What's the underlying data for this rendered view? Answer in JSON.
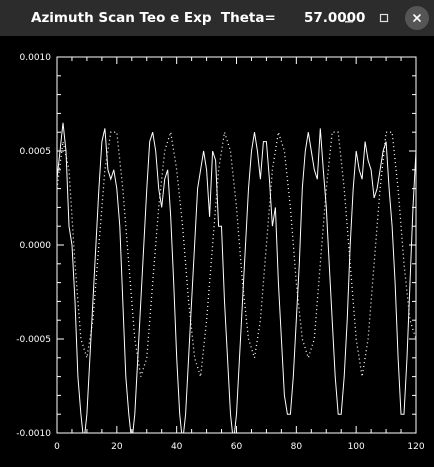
{
  "window": {
    "title": "Azimuth Scan Teo e Exp  Theta=      57.0000",
    "icons": [
      "minimize-icon",
      "maximize-icon",
      "close-icon"
    ]
  },
  "colors": {
    "titlebar": "#2c2c2c",
    "background": "#000000",
    "foreground": "#ffffff"
  },
  "chart_data": {
    "type": "line",
    "xlim": [
      0,
      120
    ],
    "ylim": [
      -0.001,
      0.001
    ],
    "xticks": [
      0,
      20,
      40,
      60,
      80,
      100,
      120
    ],
    "xtick_labels": [
      "0",
      "20",
      "40",
      "60",
      "80",
      "100",
      "120"
    ],
    "yticks": [
      -0.001,
      -0.0005,
      0.0,
      0.0005,
      0.001
    ],
    "ytick_labels": [
      "-0.0010",
      "-0.0005",
      "0.0000",
      "0.0005",
      "0.0010"
    ],
    "grid": false,
    "series": [
      {
        "style": "solid",
        "x": [
          0,
          1,
          2,
          3,
          4,
          5,
          6,
          7,
          8,
          9,
          10,
          11,
          12,
          13,
          14,
          15,
          16,
          17,
          18,
          19,
          20,
          21,
          22,
          23,
          24,
          25,
          26,
          27,
          28,
          29,
          30,
          31,
          32,
          33,
          34,
          35,
          36,
          37,
          38,
          39,
          40,
          41,
          42,
          43,
          44,
          45,
          46,
          47,
          48,
          49,
          50,
          51,
          52,
          53,
          54,
          55,
          56,
          57,
          58,
          59,
          60,
          61,
          62,
          63,
          64,
          65,
          66,
          67,
          68,
          69,
          70,
          71,
          72,
          73,
          74,
          75,
          76,
          77,
          78,
          79,
          80,
          81,
          82,
          83,
          84,
          85,
          86,
          87,
          88,
          89,
          90,
          91,
          92,
          93,
          94,
          95,
          96,
          97,
          98,
          99,
          100,
          101,
          102,
          103,
          104,
          105,
          106,
          107,
          108,
          109,
          110,
          111,
          112,
          113,
          114,
          115,
          116,
          117,
          118,
          119,
          120
        ],
        "y": [
          0.00035,
          0.0005,
          0.00065,
          0.0005,
          0.0001,
          0.0,
          -0.0003,
          -0.0007,
          -0.0009,
          -0.00105,
          -0.0009,
          -0.0006,
          -0.0003,
          0.0,
          0.0003,
          0.00055,
          0.00062,
          0.0004,
          0.00035,
          0.0004,
          0.0003,
          0.0001,
          -0.0003,
          -0.0007,
          -0.0009,
          -0.00105,
          -0.0009,
          -0.0006,
          -0.0003,
          0.0,
          0.0003,
          0.00055,
          0.0006,
          0.0005,
          0.0003,
          0.0002,
          0.00035,
          0.0004,
          0.00015,
          -0.0002,
          -0.0006,
          -0.0009,
          -0.00105,
          -0.0009,
          -0.0006,
          -0.0003,
          0.0,
          0.0003,
          0.0004,
          0.0005,
          0.0004,
          0.00015,
          0.0005,
          0.00045,
          0.0001,
          0.0001,
          -0.0003,
          -0.0006,
          -0.0009,
          -0.00105,
          -0.0009,
          -0.0006,
          -0.0003,
          0.0,
          0.0003,
          0.0005,
          0.0006,
          0.0005,
          0.00035,
          0.00055,
          0.00055,
          0.00035,
          0.0001,
          0.0002,
          -0.0002,
          -0.0005,
          -0.0008,
          -0.0009,
          -0.0009,
          -0.0007,
          -0.0004,
          -0.0001,
          0.0003,
          0.0005,
          0.0006,
          0.0005,
          0.0004,
          0.00035,
          0.00062,
          0.0004,
          0.0002,
          -0.0001,
          -0.0004,
          -0.0007,
          -0.0009,
          -0.0009,
          -0.0007,
          -0.0004,
          0.0,
          0.0003,
          0.0005,
          0.0004,
          0.00035,
          0.00055,
          0.00045,
          0.0004,
          0.00025,
          0.0003,
          0.0004,
          0.0005,
          0.00055,
          0.0003,
          0.0001,
          -0.0002,
          -0.0006,
          -0.0009,
          -0.0009,
          -0.0006,
          -0.0002,
          0.0002,
          0.0005
        ],
        "_note": ""
      },
      {
        "style": "dotted",
        "x": [
          0,
          2,
          4,
          6,
          8,
          10,
          12,
          14,
          16,
          18,
          20,
          22,
          24,
          26,
          28,
          30,
          32,
          34,
          36,
          38,
          40,
          42,
          44,
          46,
          48,
          50,
          52,
          54,
          56,
          58,
          60,
          62,
          64,
          66,
          68,
          70,
          72,
          74,
          76,
          78,
          80,
          82,
          84,
          86,
          88,
          90,
          92,
          94,
          96,
          98,
          100,
          102,
          104,
          106,
          108,
          110,
          112,
          114,
          116,
          118,
          120
        ],
        "y": [
          0.0003,
          0.00055,
          0.0004,
          -0.0001,
          -0.0005,
          -0.0006,
          -0.0004,
          0.0,
          0.0004,
          0.0006,
          0.0006,
          0.0003,
          -0.0001,
          -0.0005,
          -0.0007,
          -0.0006,
          -0.0002,
          0.0002,
          0.0005,
          0.0006,
          0.0004,
          0.0001,
          -0.0003,
          -0.0006,
          -0.0007,
          -0.0004,
          0.0,
          0.0004,
          0.0006,
          0.0005,
          0.0002,
          -0.0002,
          -0.0005,
          -0.0006,
          -0.0004,
          0.0,
          0.0004,
          0.0006,
          0.0005,
          0.0002,
          -0.0002,
          -0.0005,
          -0.0006,
          -0.0005,
          -0.0001,
          0.0003,
          0.0006,
          0.0006,
          0.0003,
          -0.0001,
          -0.0005,
          -0.0007,
          -0.0005,
          -0.0001,
          0.0003,
          0.0006,
          0.0006,
          0.0003,
          -0.0001,
          -0.0004,
          -0.0005
        ]
      }
    ]
  }
}
